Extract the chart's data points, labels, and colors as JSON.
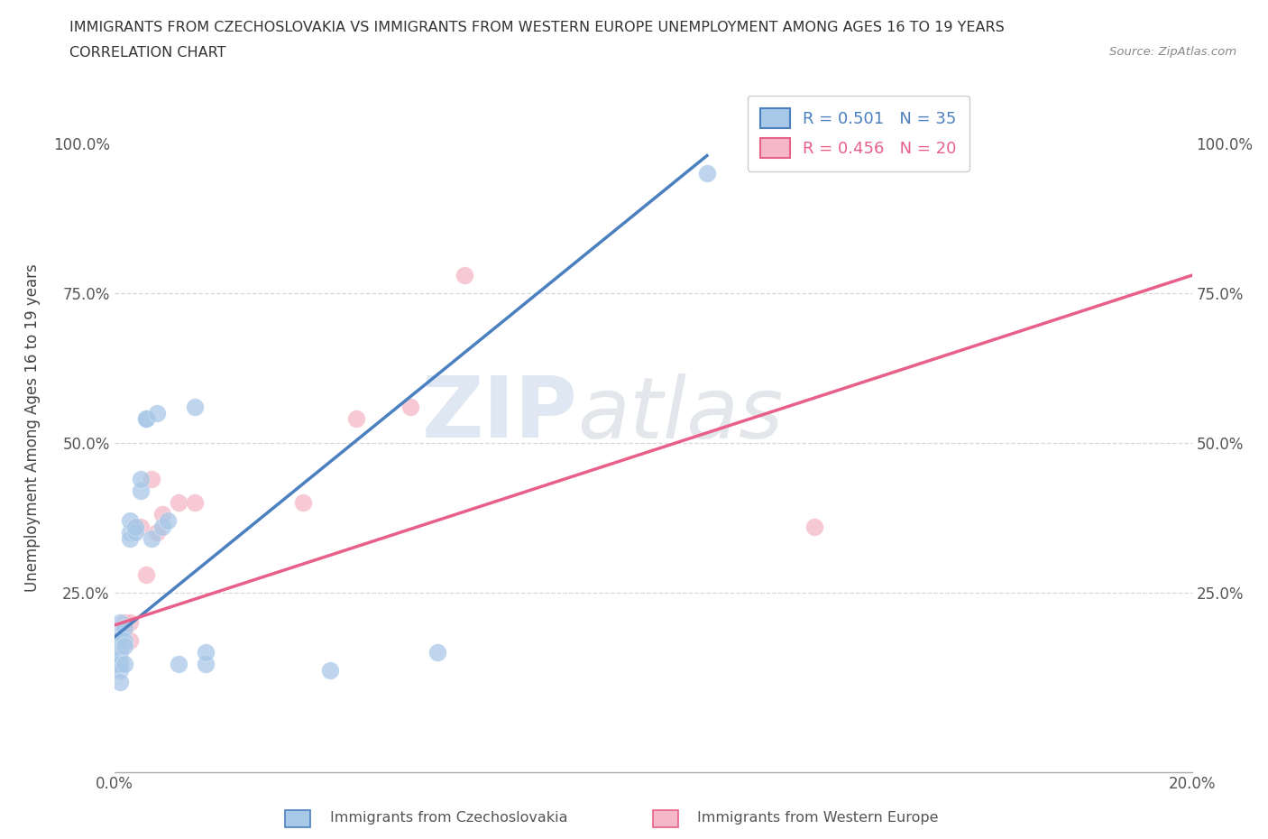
{
  "title_line1": "IMMIGRANTS FROM CZECHOSLOVAKIA VS IMMIGRANTS FROM WESTERN EUROPE UNEMPLOYMENT AMONG AGES 16 TO 19 YEARS",
  "title_line2": "CORRELATION CHART",
  "source_text": "Source: ZipAtlas.com",
  "ylabel": "Unemployment Among Ages 16 to 19 years",
  "xlim": [
    0.0,
    0.2
  ],
  "ylim": [
    -0.05,
    1.1
  ],
  "color_blue": "#a8c8e8",
  "color_pink": "#f4b8c8",
  "color_blue_line": "#4a7fc0",
  "color_pink_line": "#e8608a",
  "watermark_top": "ZIP",
  "watermark_bot": "atlas",
  "blue_x": [
    0.0,
    0.0,
    0.0,
    0.001,
    0.001,
    0.001,
    0.001,
    0.001,
    0.001,
    0.001,
    0.001,
    0.002,
    0.002,
    0.002,
    0.002,
    0.003,
    0.003,
    0.003,
    0.004,
    0.004,
    0.005,
    0.005,
    0.006,
    0.006,
    0.007,
    0.008,
    0.009,
    0.01,
    0.012,
    0.015,
    0.017,
    0.017,
    0.04,
    0.06,
    0.11
  ],
  "blue_y": [
    0.17,
    0.15,
    0.13,
    0.2,
    0.18,
    0.17,
    0.15,
    0.14,
    0.13,
    0.12,
    0.1,
    0.19,
    0.17,
    0.16,
    0.13,
    0.35,
    0.37,
    0.34,
    0.35,
    0.36,
    0.42,
    0.44,
    0.54,
    0.54,
    0.34,
    0.55,
    0.36,
    0.37,
    0.13,
    0.56,
    0.13,
    0.15,
    0.12,
    0.15,
    0.95
  ],
  "pink_x": [
    0.001,
    0.001,
    0.001,
    0.002,
    0.002,
    0.003,
    0.003,
    0.004,
    0.005,
    0.006,
    0.007,
    0.008,
    0.009,
    0.012,
    0.015,
    0.035,
    0.045,
    0.055,
    0.065,
    0.13
  ],
  "pink_y": [
    0.17,
    0.16,
    0.15,
    0.2,
    0.19,
    0.2,
    0.17,
    0.36,
    0.36,
    0.28,
    0.44,
    0.35,
    0.38,
    0.4,
    0.4,
    0.4,
    0.54,
    0.56,
    0.78,
    0.36
  ],
  "blue_line_x": [
    0.0,
    0.11
  ],
  "blue_line_y": [
    0.175,
    0.98
  ],
  "pink_line_x": [
    0.0,
    0.2
  ],
  "pink_line_y": [
    0.195,
    0.78
  ]
}
